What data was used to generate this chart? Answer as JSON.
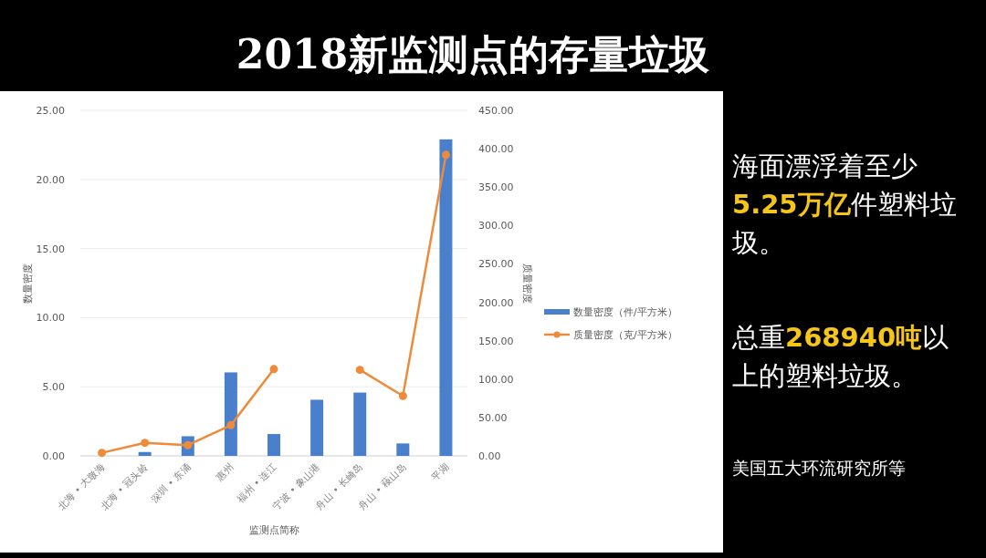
{
  "chart_data": {
    "type": "bar",
    "title": "2018新监测点的存量垃圾",
    "categories": [
      "北海 • 大墩海",
      "北海 • 冠头岭",
      "深圳 • 东涌",
      "惠州",
      "福州 • 连江",
      "宁波 • 象山港",
      "舟山 • 长崎岛",
      "舟山 • 薐山岛",
      "平湖"
    ],
    "series": [
      {
        "name": "数量密度（件/平方米）",
        "color": "#4a7fcb",
        "values": [
          0,
          0.28,
          1.42,
          6.04,
          1.58,
          4.06,
          4.58,
          0.9,
          22.9
        ]
      },
      {
        "name": "质量密度（克/平方米）",
        "type": "line",
        "axis": "y2",
        "marker": "circle",
        "color": "#ed8b3b",
        "values": [
          4,
          17,
          14,
          40,
          113,
          null,
          112,
          78,
          392
        ]
      }
    ],
    "xlabel": "监测点简称",
    "ylabel": "数量密度",
    "y2label": "质量密度",
    "ylim": [
      0,
      25
    ],
    "yticks": [
      {
        "value": 0,
        "label": "0.00"
      },
      {
        "value": 5,
        "label": "5.00"
      },
      {
        "value": 10,
        "label": "10.00"
      },
      {
        "value": 15,
        "label": "15.00"
      },
      {
        "value": 20,
        "label": "20.00"
      },
      {
        "value": 25,
        "label": "25.00"
      }
    ],
    "y2lim": [
      0,
      450
    ],
    "y2ticks": [
      {
        "value": 0,
        "label": "0.00"
      },
      {
        "value": 50,
        "label": "50.00"
      },
      {
        "value": 100,
        "label": "100.00"
      },
      {
        "value": 150,
        "label": "150.00"
      },
      {
        "value": 200,
        "label": "200.00"
      },
      {
        "value": 250,
        "label": "250.00"
      },
      {
        "value": 300,
        "label": "300.00"
      },
      {
        "value": 350,
        "label": "350.00"
      },
      {
        "value": 400,
        "label": "400.00"
      },
      {
        "value": 450,
        "label": "450.00"
      }
    ],
    "grid": "y",
    "legend": "right",
    "annotations": [
      "海面漂浮着至少**5.25万亿**件塑料垃圾。",
      "总重**268940吨**以上的塑料垃圾。",
      "美国五大环流研究所等"
    ]
  }
}
